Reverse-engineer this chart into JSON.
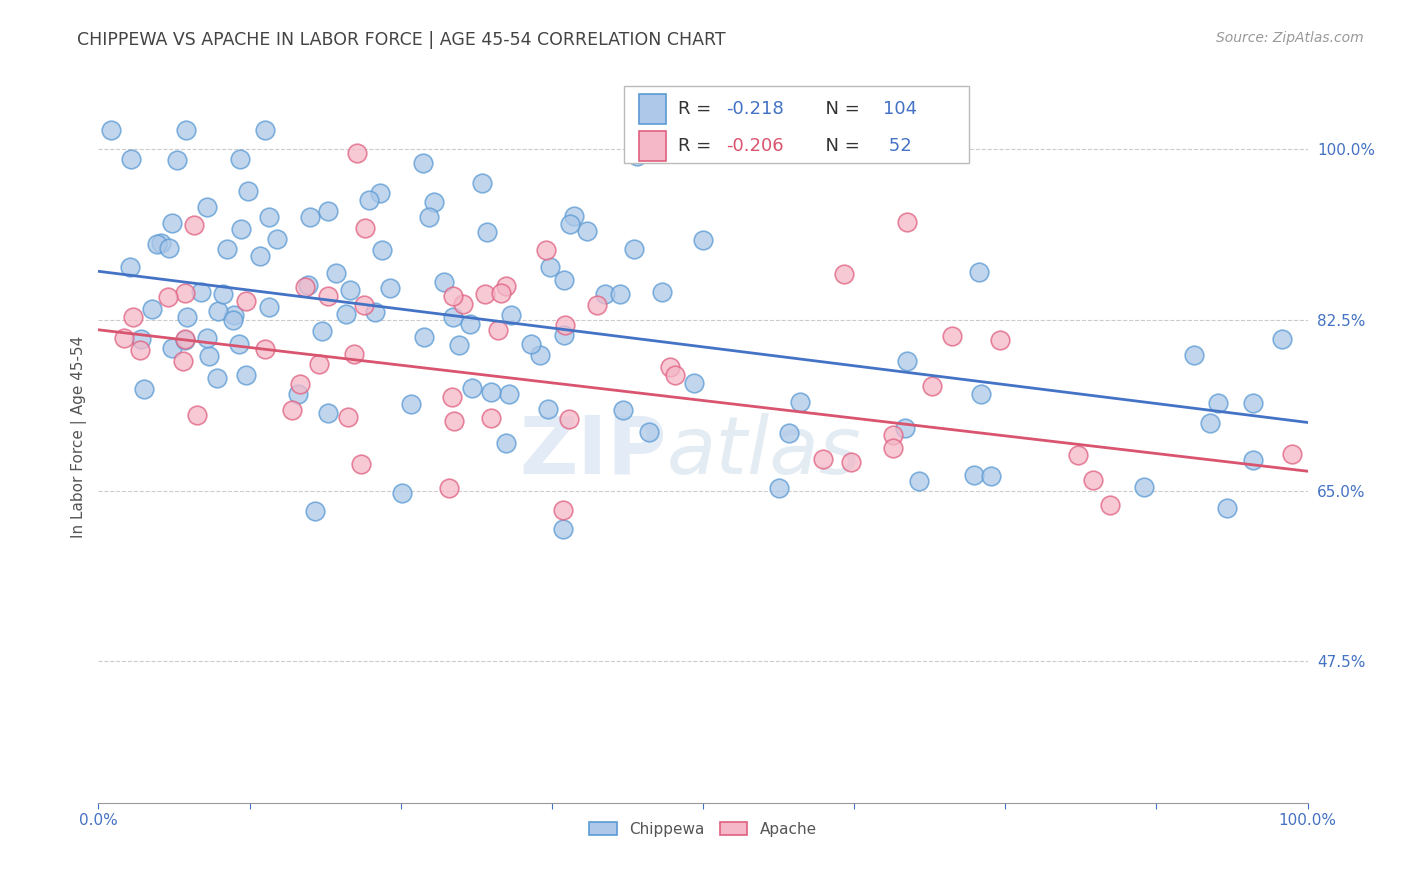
{
  "title": "CHIPPEWA VS APACHE IN LABOR FORCE | AGE 45-54 CORRELATION CHART",
  "source": "Source: ZipAtlas.com",
  "ylabel": "In Labor Force | Age 45-54",
  "chippewa_color": "#adc8e8",
  "apache_color": "#f4b8c8",
  "chippewa_edge_color": "#5b9bd5",
  "apache_edge_color": "#e06080",
  "chippewa_line_color": "#4472c4",
  "apache_line_color": "#d9546e",
  "chippewa_R": -0.218,
  "chippewa_N": 104,
  "apache_R": -0.206,
  "apache_N": 52,
  "legend_title_chippewa": "Chippewa",
  "legend_title_apache": "Apache",
  "watermark_zip": "ZIP",
  "watermark_atlas": "atlas",
  "background_color": "#ffffff",
  "grid_color": "#cccccc",
  "title_color": "#555555",
  "ytick_vals": [
    0.475,
    0.65,
    0.825,
    1.0
  ],
  "ytick_labels": [
    "47.5%",
    "65.0%",
    "82.5%",
    "100.0%"
  ],
  "xlim": [
    0.0,
    1.0
  ],
  "ylim": [
    0.33,
    1.08
  ]
}
